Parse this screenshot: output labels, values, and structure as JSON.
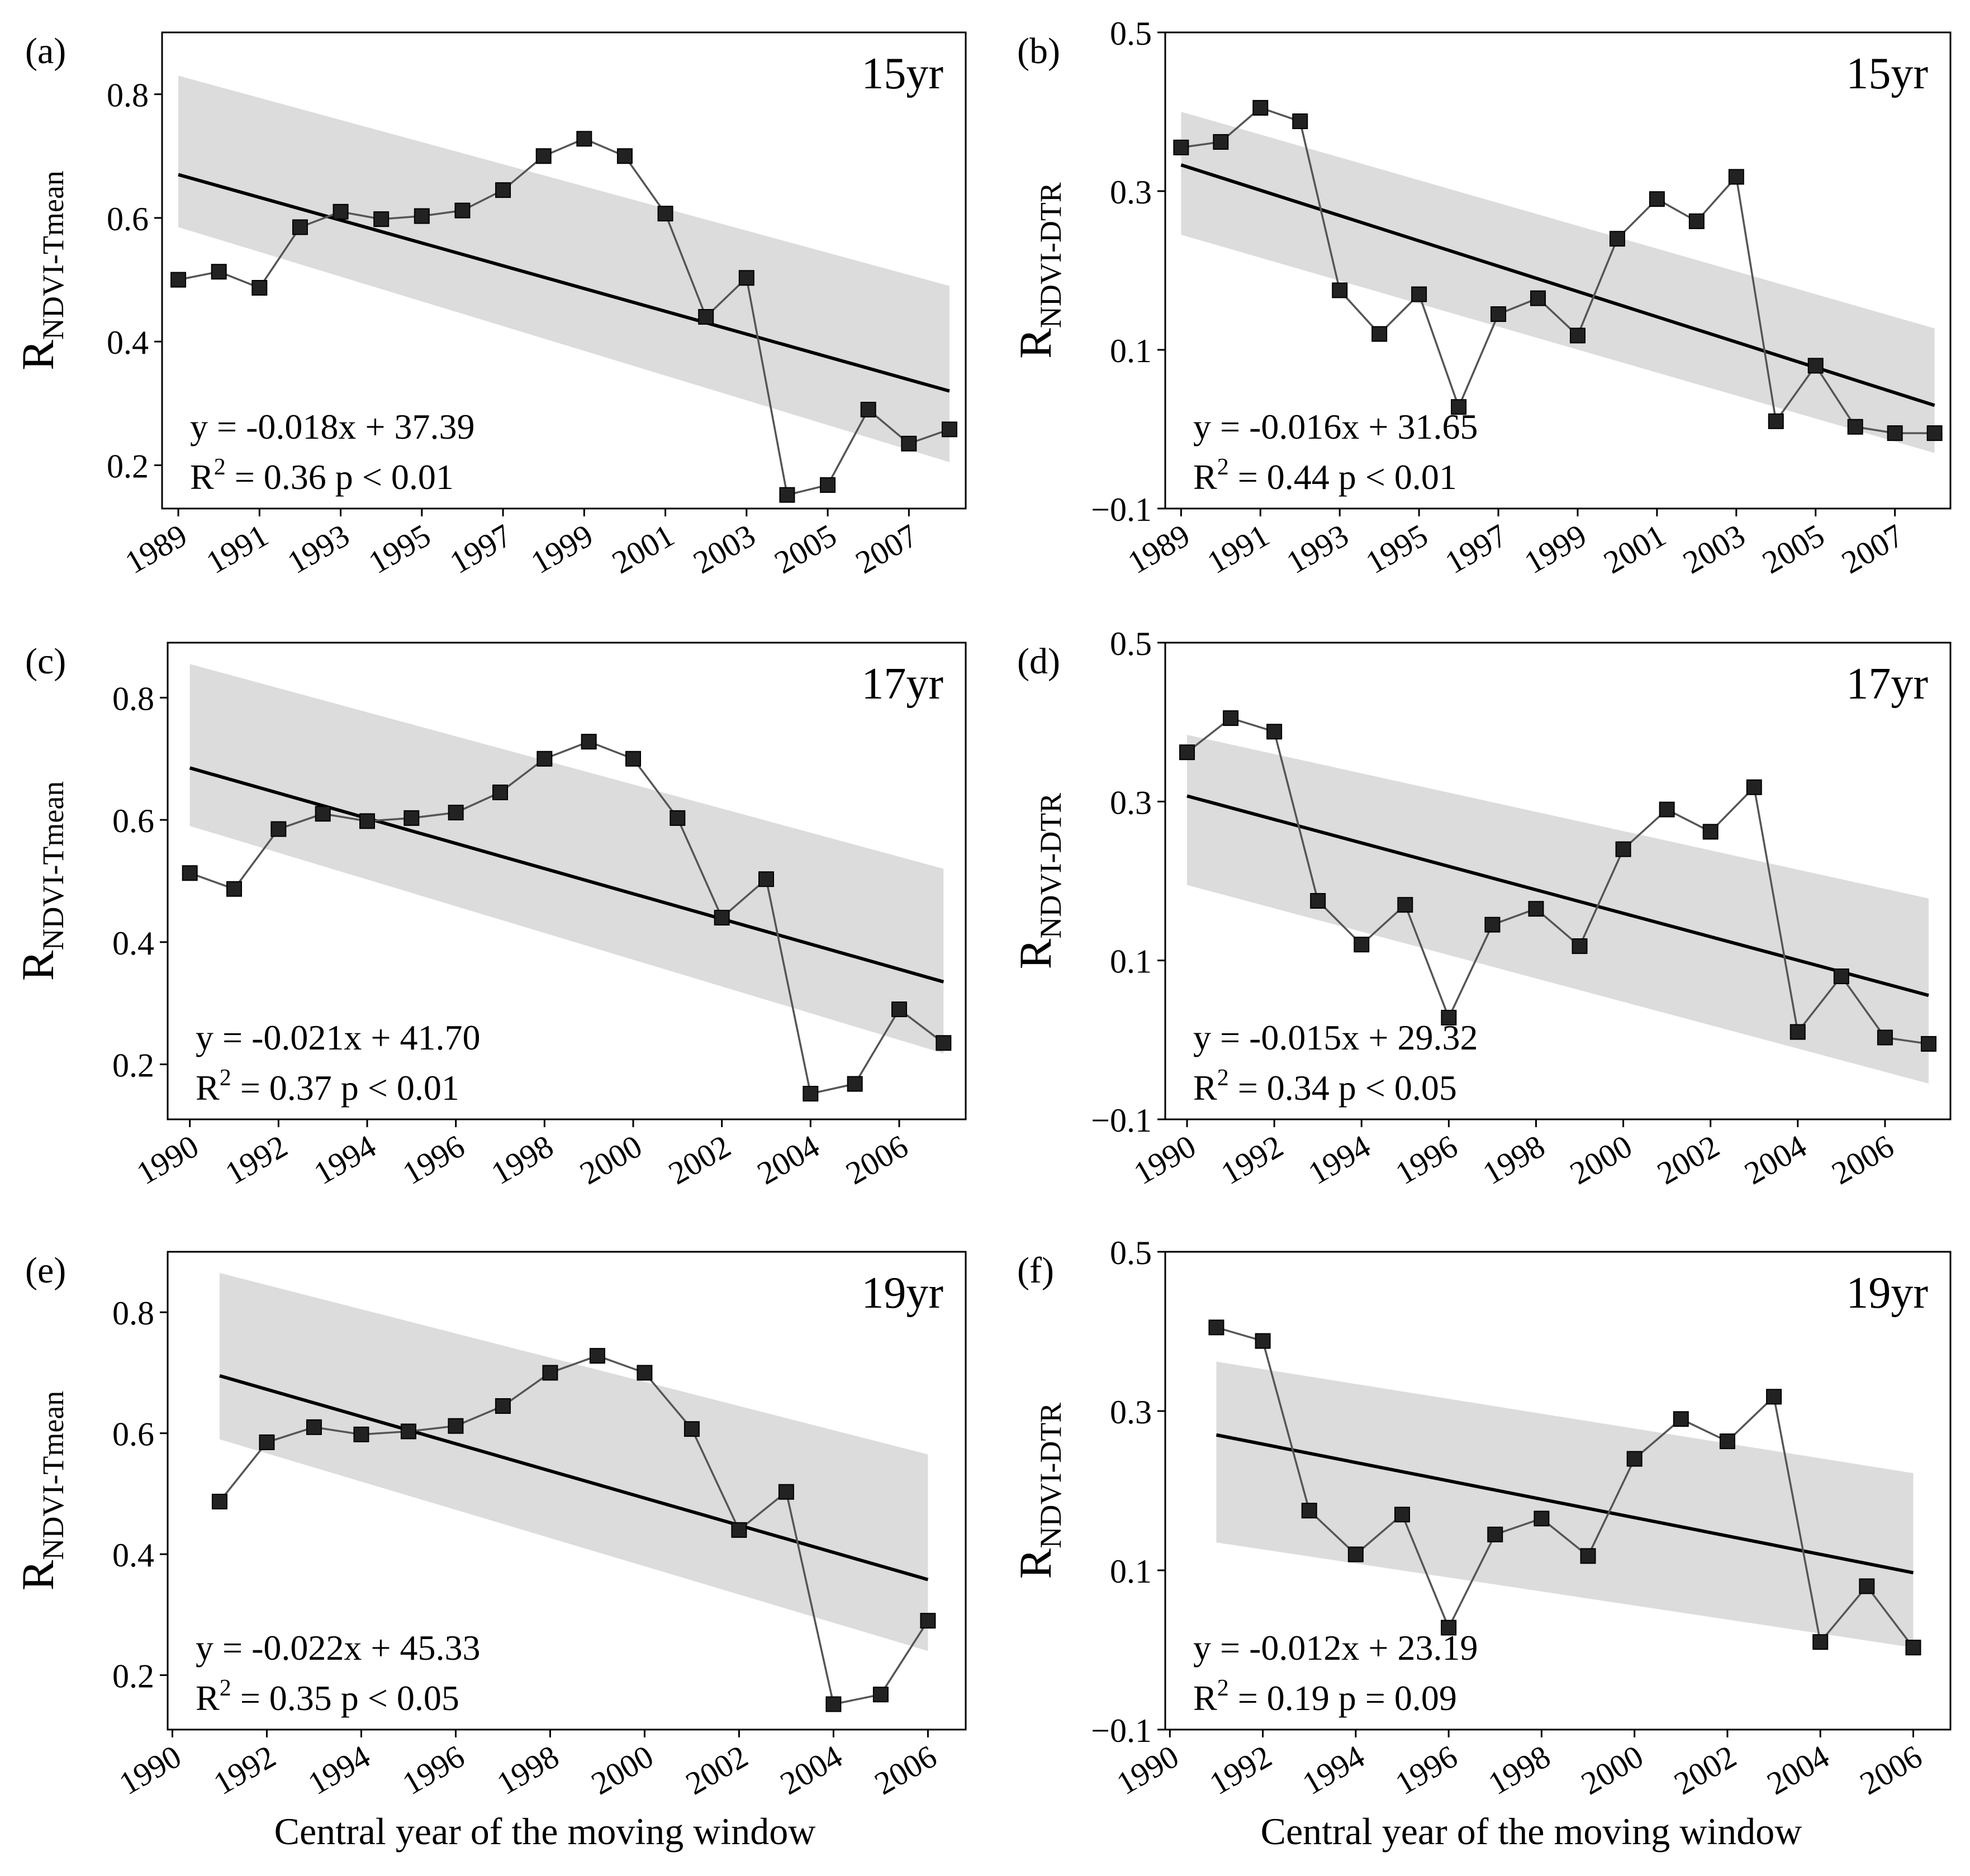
{
  "figure": {
    "xlabel": "Central year of the moving window"
  },
  "chart_data": [
    {
      "id": "a",
      "panel_label": "(a)",
      "type": "line",
      "window": "15yr",
      "ylabel_main": "R",
      "ylabel_sub": "NDVI-Tmean",
      "ylim": [
        0.13,
        0.9
      ],
      "yticks": [
        0.2,
        0.4,
        0.6,
        0.8
      ],
      "xlim": [
        1988.6,
        2008.4
      ],
      "xticks": [
        1989,
        1991,
        1993,
        1995,
        1997,
        1999,
        2001,
        2003,
        2005,
        2007
      ],
      "x": [
        1989,
        1990,
        1991,
        1992,
        1993,
        1994,
        1995,
        1996,
        1997,
        1998,
        1999,
        2000,
        2001,
        2002,
        2003,
        2004,
        2005,
        2006,
        2007,
        2008
      ],
      "values": [
        0.5,
        0.513,
        0.487,
        0.585,
        0.61,
        0.598,
        0.603,
        0.612,
        0.645,
        0.7,
        0.728,
        0.7,
        0.607,
        0.44,
        0.503,
        0.152,
        0.168,
        0.29,
        0.235,
        0.258
      ],
      "fit": {
        "x": [
          1989,
          2008
        ],
        "y": [
          0.67,
          0.32
        ]
      },
      "band_upper": [
        0.83,
        0.49
      ],
      "band_lower": [
        0.585,
        0.205
      ],
      "equation": "y = -0.018x  + 37.39",
      "r2_prefix": "R",
      "r2_sup": "2",
      "r2_text": " = 0.36   p < 0.01"
    },
    {
      "id": "b",
      "panel_label": "(b)",
      "type": "line",
      "window": "15yr",
      "ylabel_main": "R",
      "ylabel_sub": "NDVI-DTR",
      "ylim": [
        -0.1,
        0.5
      ],
      "yticks": [
        -0.1,
        0.1,
        0.3,
        0.5
      ],
      "xlim": [
        1988.6,
        2008.4
      ],
      "xticks": [
        1989,
        1991,
        1993,
        1995,
        1997,
        1999,
        2001,
        2003,
        2005,
        2007
      ],
      "x": [
        1989,
        1990,
        1991,
        1992,
        1993,
        1994,
        1995,
        1996,
        1997,
        1998,
        1999,
        2000,
        2001,
        2002,
        2003,
        2004,
        2005,
        2006,
        2007,
        2008
      ],
      "values": [
        0.355,
        0.362,
        0.405,
        0.388,
        0.175,
        0.12,
        0.17,
        0.028,
        0.145,
        0.165,
        0.118,
        0.24,
        0.29,
        0.262,
        0.318,
        0.01,
        0.08,
        0.003,
        -0.005,
        -0.005
      ],
      "fit": {
        "x": [
          1989,
          2008
        ],
        "y": [
          0.333,
          0.03
        ]
      },
      "band_upper": [
        0.4,
        0.127
      ],
      "band_lower": [
        0.245,
        -0.03
      ],
      "equation": "y = -0.016x  + 31.65",
      "r2_prefix": "R",
      "r2_sup": "2",
      "r2_text": " = 0.44   p < 0.01"
    },
    {
      "id": "c",
      "panel_label": "(c)",
      "type": "line",
      "window": "17yr",
      "ylabel_main": "R",
      "ylabel_sub": "NDVI-Tmean",
      "ylim": [
        0.11,
        0.89
      ],
      "yticks": [
        0.2,
        0.4,
        0.6,
        0.8
      ],
      "xlim": [
        1989.5,
        2007.5
      ],
      "xticks": [
        1990,
        1992,
        1994,
        1996,
        1998,
        2000,
        2002,
        2004,
        2006
      ],
      "x": [
        1990,
        1991,
        1992,
        1993,
        1994,
        1995,
        1996,
        1997,
        1998,
        1999,
        2000,
        2001,
        2002,
        2003,
        2004,
        2005,
        2006,
        2007
      ],
      "values": [
        0.513,
        0.487,
        0.585,
        0.61,
        0.598,
        0.603,
        0.612,
        0.645,
        0.7,
        0.728,
        0.7,
        0.603,
        0.44,
        0.503,
        0.152,
        0.168,
        0.29,
        0.235
      ],
      "fit": {
        "x": [
          1990,
          2007
        ],
        "y": [
          0.685,
          0.335
        ]
      },
      "band_upper": [
        0.855,
        0.52
      ],
      "band_lower": [
        0.59,
        0.218
      ],
      "equation": "y = -0.021x  + 41.70",
      "r2_prefix": "R",
      "r2_sup": "2",
      "r2_text": " = 0.37   p < 0.01"
    },
    {
      "id": "d",
      "panel_label": "(d)",
      "type": "line",
      "window": "17yr",
      "ylabel_main": "R",
      "ylabel_sub": "NDVI-DTR",
      "ylim": [
        -0.1,
        0.5
      ],
      "yticks": [
        -0.1,
        0.1,
        0.3,
        0.5
      ],
      "xlim": [
        1989.5,
        2007.5
      ],
      "xticks": [
        1990,
        1992,
        1994,
        1996,
        1998,
        2000,
        2002,
        2004,
        2006
      ],
      "x": [
        1990,
        1991,
        1992,
        1993,
        1994,
        1995,
        1996,
        1997,
        1998,
        1999,
        2000,
        2001,
        2002,
        2003,
        2004,
        2005,
        2006,
        2007
      ],
      "values": [
        0.362,
        0.405,
        0.388,
        0.175,
        0.12,
        0.17,
        0.028,
        0.145,
        0.165,
        0.118,
        0.24,
        0.29,
        0.262,
        0.318,
        0.01,
        0.08,
        0.003,
        -0.005
      ],
      "fit": {
        "x": [
          1990,
          2007
        ],
        "y": [
          0.307,
          0.056
        ]
      },
      "band_upper": [
        0.384,
        0.178
      ],
      "band_lower": [
        0.195,
        -0.055
      ],
      "equation": "y = -0.015x  + 29.32",
      "r2_prefix": "R",
      "r2_sup": "2",
      "r2_text": " = 0.34   p < 0.05"
    },
    {
      "id": "e",
      "panel_label": "(e)",
      "type": "line",
      "window": "19yr",
      "ylabel_main": "R",
      "ylabel_sub": "NDVI-Tmean",
      "ylim": [
        0.11,
        0.9
      ],
      "yticks": [
        0.2,
        0.4,
        0.6,
        0.8
      ],
      "xlim": [
        1989.9,
        2006.8
      ],
      "xticks": [
        1990,
        1992,
        1994,
        1996,
        1998,
        2000,
        2002,
        2004,
        2006
      ],
      "x": [
        1991,
        1992,
        1993,
        1994,
        1995,
        1996,
        1997,
        1998,
        1999,
        2000,
        2001,
        2002,
        2003,
        2004,
        2005,
        2006
      ],
      "values": [
        0.487,
        0.585,
        0.61,
        0.598,
        0.603,
        0.612,
        0.645,
        0.7,
        0.728,
        0.7,
        0.607,
        0.44,
        0.503,
        0.152,
        0.168,
        0.29
      ],
      "fit": {
        "x": [
          1991,
          2006
        ],
        "y": [
          0.695,
          0.358
        ]
      },
      "band_upper": [
        0.865,
        0.565
      ],
      "band_lower": [
        0.59,
        0.24
      ],
      "equation": "y = -0.022x  + 45.33",
      "r2_prefix": "R",
      "r2_sup": "2",
      "r2_text": " = 0.35  p < 0.05"
    },
    {
      "id": "f",
      "panel_label": "(f)",
      "type": "line",
      "window": "19yr",
      "ylabel_main": "R",
      "ylabel_sub": "NDVI-DTR",
      "ylim": [
        -0.1,
        0.5
      ],
      "yticks": [
        -0.1,
        0.1,
        0.3,
        0.5
      ],
      "xlim": [
        1989.9,
        2006.8
      ],
      "xticks": [
        1990,
        1992,
        1994,
        1996,
        1998,
        2000,
        2002,
        2004,
        2006
      ],
      "x": [
        1991,
        1992,
        1993,
        1994,
        1995,
        1996,
        1997,
        1998,
        1999,
        2000,
        2001,
        2002,
        2003,
        2004,
        2005,
        2006
      ],
      "values": [
        0.405,
        0.388,
        0.175,
        0.12,
        0.17,
        0.028,
        0.145,
        0.165,
        0.118,
        0.24,
        0.29,
        0.262,
        0.318,
        0.01,
        0.08,
        0.003
      ],
      "fit": {
        "x": [
          1991,
          2006
        ],
        "y": [
          0.27,
          0.097
        ]
      },
      "band_upper": [
        0.362,
        0.222
      ],
      "band_lower": [
        0.135,
        0.003
      ],
      "equation": "y = -0.012x  + 23.19",
      "r2_prefix": "R",
      "r2_sup": "2",
      "r2_text": " = 0.19   p = 0.09"
    }
  ]
}
